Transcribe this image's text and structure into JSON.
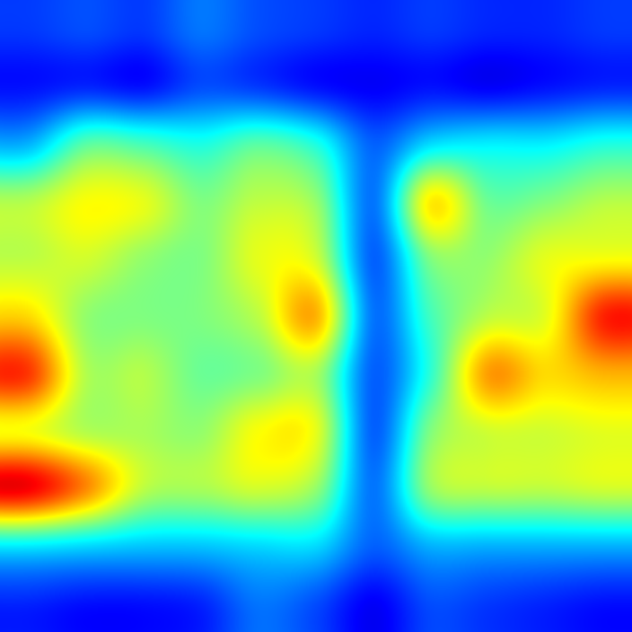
{
  "chart_data": {
    "type": "heatmap",
    "colormap": "jet",
    "value_range": [
      0,
      1
    ],
    "axes_visible": false,
    "grid": false,
    "legend": false,
    "rows": 11,
    "cols": 11,
    "values": [
      [
        0.18,
        0.2,
        0.18,
        0.24,
        0.2,
        0.18,
        0.16,
        0.18,
        0.16,
        0.16,
        0.18
      ],
      [
        0.14,
        0.16,
        0.14,
        0.2,
        0.18,
        0.14,
        0.12,
        0.14,
        0.12,
        0.14,
        0.16
      ],
      [
        0.3,
        0.46,
        0.44,
        0.4,
        0.46,
        0.4,
        0.22,
        0.34,
        0.36,
        0.36,
        0.4
      ],
      [
        0.55,
        0.62,
        0.6,
        0.5,
        0.56,
        0.52,
        0.24,
        0.64,
        0.48,
        0.5,
        0.55
      ],
      [
        0.56,
        0.58,
        0.52,
        0.5,
        0.6,
        0.58,
        0.22,
        0.5,
        0.52,
        0.6,
        0.62
      ],
      [
        0.66,
        0.52,
        0.5,
        0.5,
        0.56,
        0.7,
        0.24,
        0.44,
        0.56,
        0.6,
        0.84
      ],
      [
        0.82,
        0.55,
        0.55,
        0.48,
        0.5,
        0.54,
        0.22,
        0.42,
        0.72,
        0.66,
        0.7
      ],
      [
        0.62,
        0.55,
        0.54,
        0.52,
        0.62,
        0.6,
        0.22,
        0.5,
        0.58,
        0.58,
        0.6
      ],
      [
        0.88,
        0.74,
        0.56,
        0.54,
        0.58,
        0.52,
        0.24,
        0.52,
        0.56,
        0.56,
        0.58
      ],
      [
        0.36,
        0.34,
        0.32,
        0.32,
        0.34,
        0.34,
        0.22,
        0.3,
        0.3,
        0.3,
        0.3
      ],
      [
        0.16,
        0.14,
        0.14,
        0.16,
        0.24,
        0.2,
        0.12,
        0.2,
        0.18,
        0.16,
        0.14
      ]
    ]
  }
}
